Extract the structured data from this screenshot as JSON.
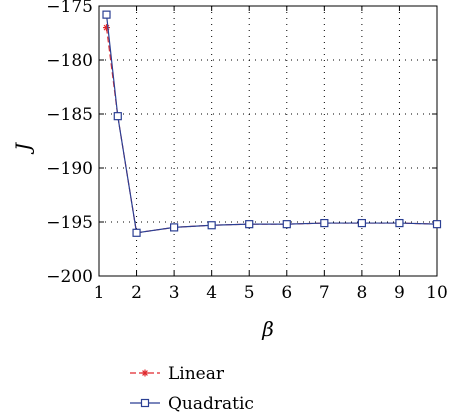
{
  "chart_data": {
    "type": "line",
    "title": "",
    "xlabel": "β",
    "ylabel": "J",
    "xlim": [
      1,
      10
    ],
    "ylim": [
      -200,
      -175
    ],
    "xticks": [
      1,
      2,
      3,
      4,
      5,
      6,
      7,
      8,
      9,
      10
    ],
    "yticks": [
      -175,
      -180,
      -185,
      -190,
      -195,
      -200
    ],
    "grid": true,
    "legend_position": "below",
    "x": [
      1.2,
      1.5,
      2,
      3,
      4,
      5,
      6,
      7,
      8,
      9,
      10
    ],
    "series": [
      {
        "name": "Linear",
        "color": "#e0282d",
        "line_style": "dashed",
        "marker": "star",
        "values": [
          -177.0,
          -185.2,
          -196.0,
          -195.5,
          -195.3,
          -195.2,
          -195.2,
          -195.1,
          -195.1,
          -195.1,
          -195.2
        ]
      },
      {
        "name": "Quadratic",
        "color": "#2b3f93",
        "line_style": "solid",
        "marker": "square",
        "values": [
          -175.8,
          -185.2,
          -196.0,
          -195.5,
          -195.3,
          -195.2,
          -195.2,
          -195.1,
          -195.1,
          -195.1,
          -195.2
        ]
      }
    ]
  }
}
